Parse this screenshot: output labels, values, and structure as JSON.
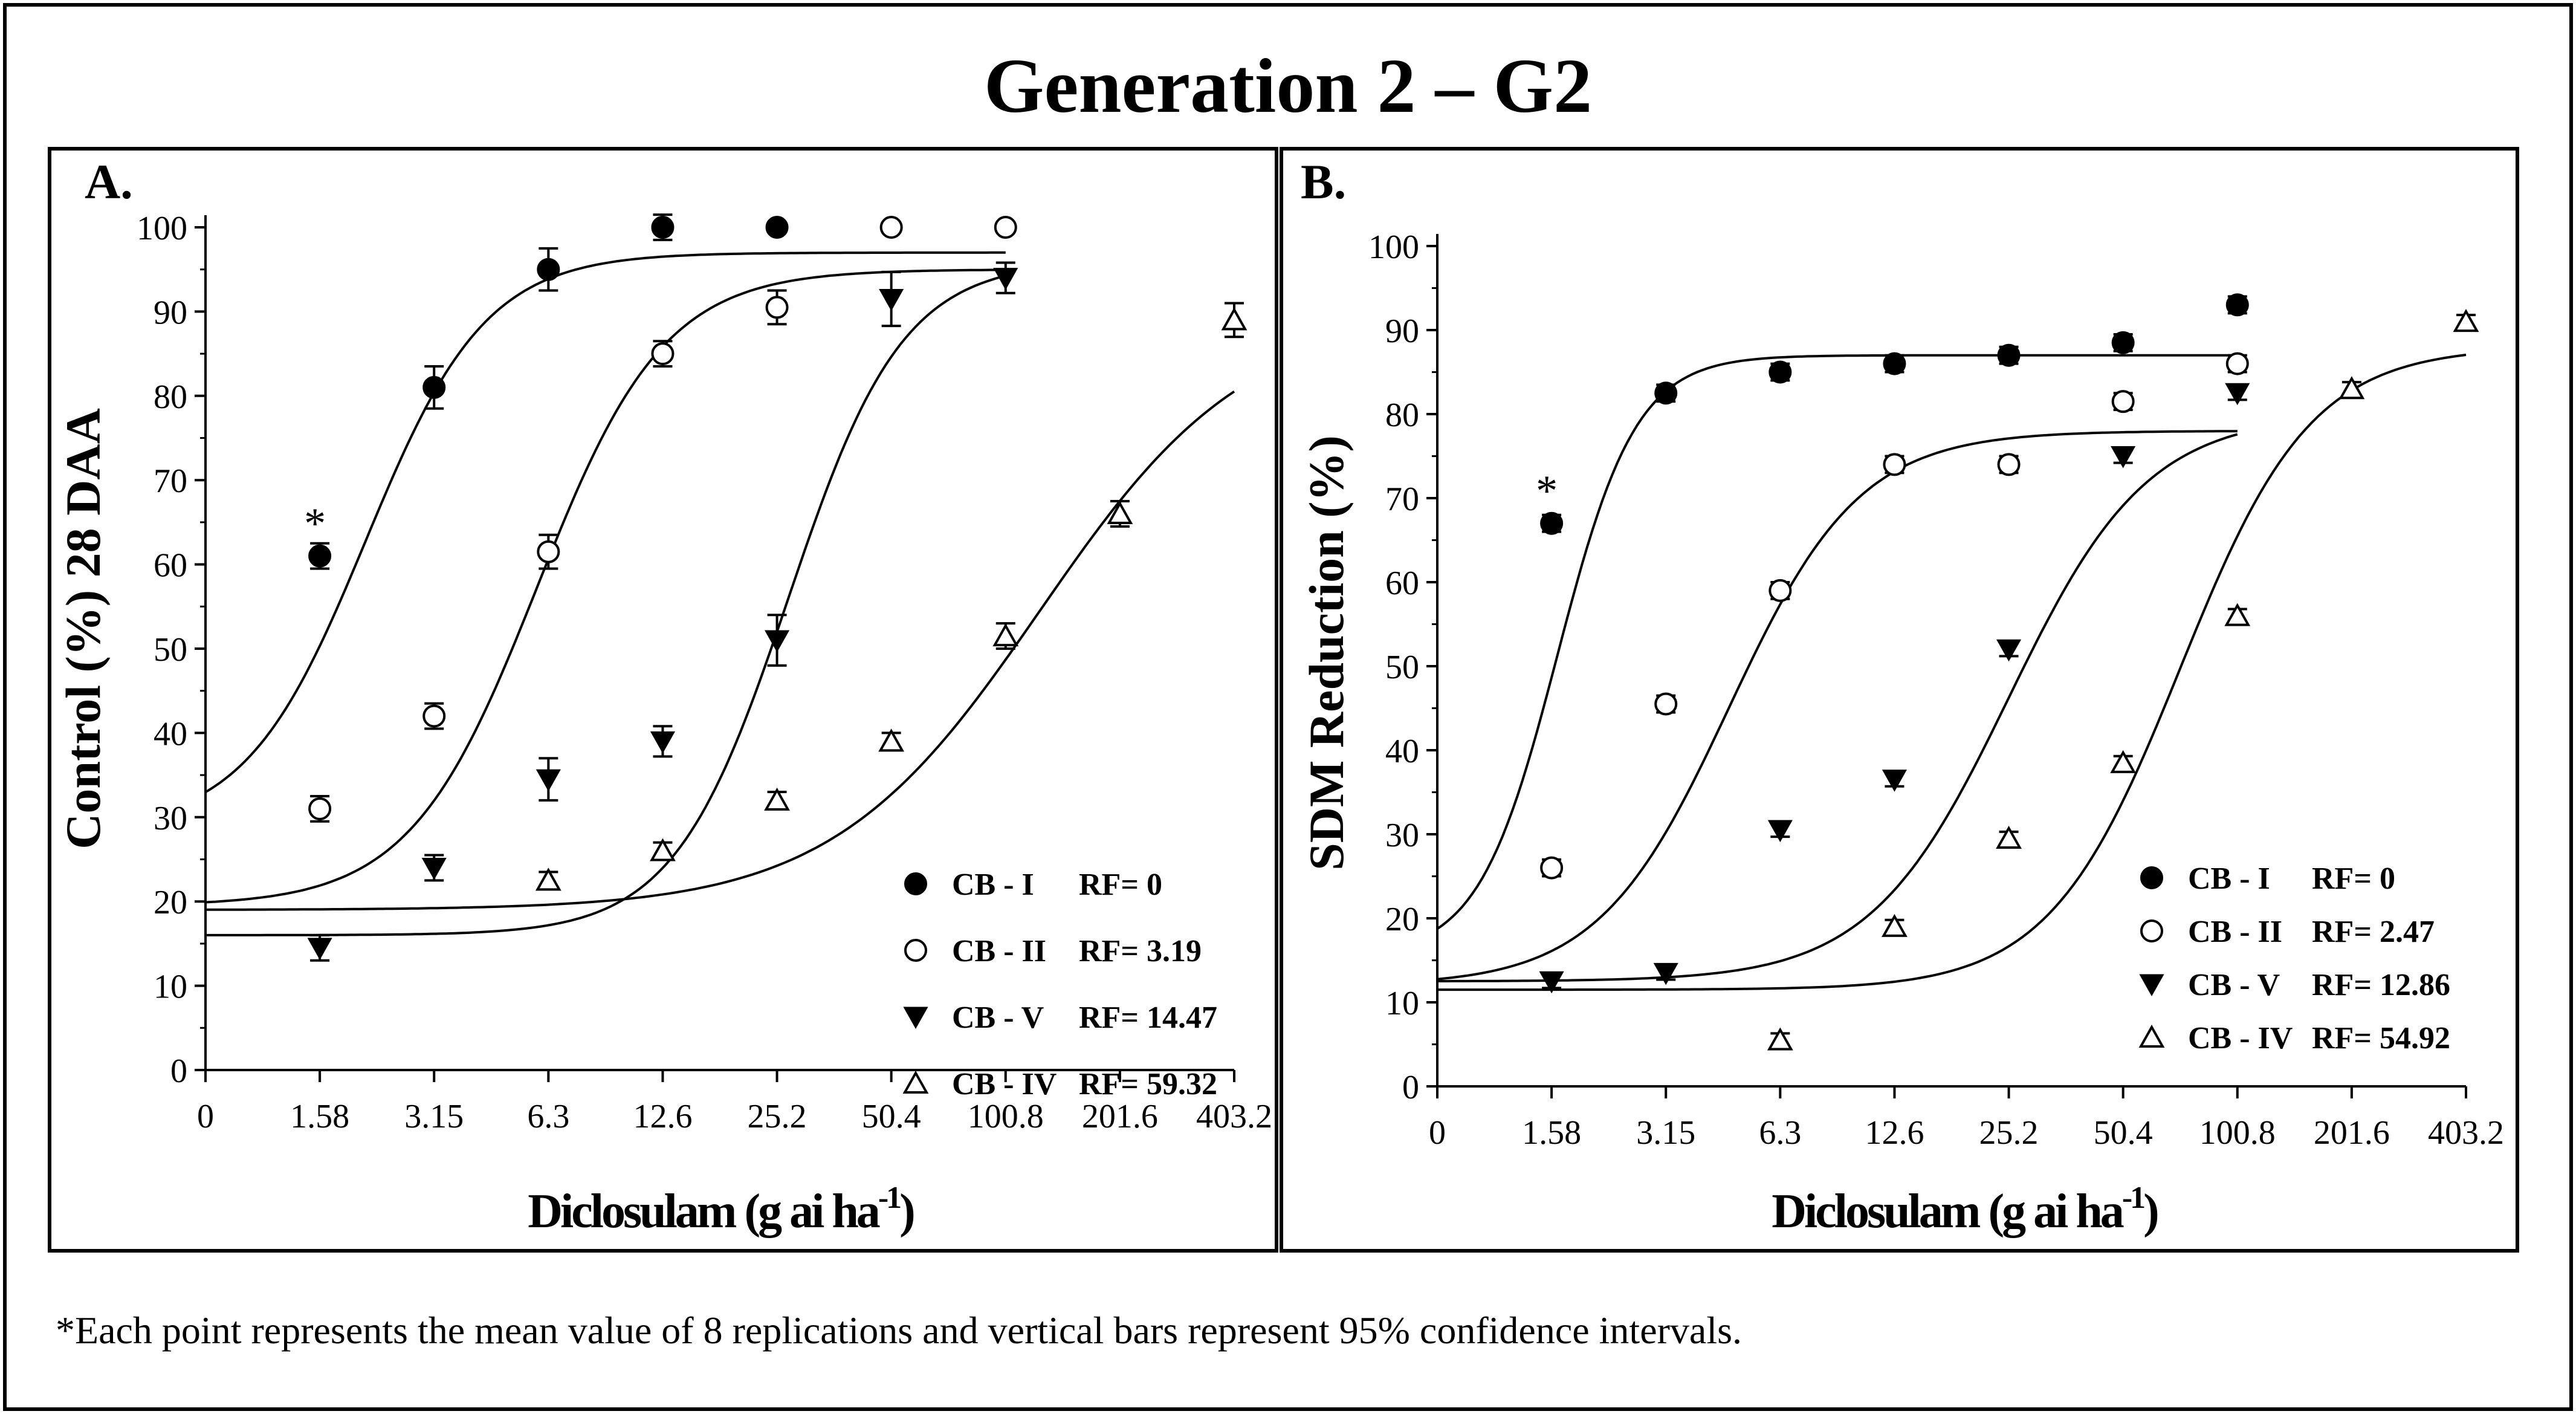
{
  "figure": {
    "title": "Generation 2 – G2",
    "footnote": "*Each point represents the mean value of 8 replications and vertical bars represent 95% confidence intervals."
  },
  "chart_data": [
    {
      "type": "scatter",
      "panel": "A.",
      "ylabel": "Control (%) 28 DAA",
      "xlabel_main": "Diclosulam (g ai ha",
      "xlabel_sup": "-1",
      "xlabel_end": ")",
      "x_ticks": [
        "0",
        "1.58",
        "3.15",
        "6.3",
        "12.6",
        "25.2",
        "50.4",
        "100.8",
        "201.6",
        "403.2"
      ],
      "ylim": [
        0,
        100
      ],
      "y_ticks": [
        0,
        10,
        20,
        30,
        40,
        50,
        60,
        70,
        80,
        90,
        100
      ],
      "annotation": {
        "text": "*",
        "x_index": 1,
        "y": 66
      },
      "series": [
        {
          "name": "CB - I",
          "rf": "RF= 0",
          "marker": "filled-circle",
          "x_index": [
            1,
            2,
            3,
            4,
            5
          ],
          "values": [
            61,
            81,
            95,
            100,
            100
          ],
          "ci": [
            1.5,
            2.5,
            2.5,
            1.5,
            0.5
          ],
          "curve": {
            "lower": 28.5,
            "upper": 97,
            "mid": 1.4,
            "slope": 1.9,
            "x_end": 7
          }
        },
        {
          "name": "CB - II",
          "rf": "RF= 3.19",
          "marker": "open-circle",
          "x_index": [
            1,
            2,
            3,
            4,
            5,
            6,
            7
          ],
          "values": [
            31,
            42,
            61.5,
            85,
            90.5,
            100,
            100
          ],
          "ci": [
            1.5,
            1.5,
            2,
            1.5,
            2,
            0.5,
            0.5
          ],
          "curve": {
            "lower": 19.5,
            "upper": 95,
            "mid": 2.9,
            "slope": 1.8,
            "x_end": 7
          }
        },
        {
          "name": "CB - V",
          "rf": "RF= 14.47",
          "marker": "filled-triangle-down",
          "x_index": [
            1,
            2,
            3,
            4,
            5,
            6,
            7
          ],
          "values": [
            14.5,
            24,
            34.5,
            39,
            51,
            91.5,
            94
          ],
          "ci": [
            1.5,
            1.5,
            2.5,
            1.8,
            3,
            3.2,
            1.8
          ],
          "curve": {
            "lower": 16,
            "upper": 96,
            "mid": 5.1,
            "slope": 2.0,
            "x_end": 7
          }
        },
        {
          "name": "CB - IV",
          "rf": "RF= 59.32",
          "marker": "open-triangle-up",
          "x_index": [
            3,
            4,
            5,
            6,
            7,
            8,
            9
          ],
          "values": [
            22.5,
            26,
            32,
            39,
            51.5,
            66,
            89
          ],
          "ci": [
            1,
            1,
            1,
            1,
            1.5,
            1.5,
            2
          ],
          "curve": {
            "lower": 19,
            "upper": 90,
            "mid": 7.3,
            "slope": 1.1,
            "x_end": 9
          }
        }
      ],
      "legend": {
        "placement": "bottom-right"
      }
    },
    {
      "type": "scatter",
      "panel": "B.",
      "ylabel": "SDM Reduction (%)",
      "xlabel_main": "Diclosulam (g ai ha",
      "xlabel_sup": "-1",
      "xlabel_end": ")",
      "x_ticks": [
        "0",
        "1.58",
        "3.15",
        "6.3",
        "12.6",
        "25.2",
        "50.4",
        "100.8",
        "201.6",
        "403.2"
      ],
      "ylim": [
        0,
        100
      ],
      "y_ticks": [
        0,
        10,
        20,
        30,
        40,
        50,
        60,
        70,
        80,
        90,
        100
      ],
      "annotation": {
        "text": "*",
        "x_index": 1,
        "y": 72
      },
      "series": [
        {
          "name": "CB - I",
          "rf": "RF= 0",
          "marker": "filled-circle",
          "x_index": [
            1,
            2,
            3,
            4,
            5,
            6,
            7
          ],
          "values": [
            67,
            82.5,
            85,
            86,
            87,
            88.5,
            93
          ],
          "ci": [
            1,
            1,
            1,
            1,
            1,
            1,
            1
          ],
          "curve": {
            "lower": 15.5,
            "upper": 87,
            "mid": 1.05,
            "slope": 2.9,
            "x_end": 7
          }
        },
        {
          "name": "CB - II",
          "rf": "RF= 2.47",
          "marker": "open-circle",
          "x_index": [
            1,
            2,
            3,
            4,
            5,
            6,
            7
          ],
          "values": [
            26,
            45.5,
            59,
            74,
            74,
            81.5,
            86
          ],
          "ci": [
            1,
            1,
            1,
            1,
            1,
            1,
            1
          ],
          "curve": {
            "lower": 12,
            "upper": 78,
            "mid": 2.55,
            "slope": 1.75,
            "x_end": 7
          }
        },
        {
          "name": "CB - V",
          "rf": "RF= 12.86",
          "marker": "filled-triangle-down",
          "x_index": [
            1,
            2,
            3,
            4,
            5,
            6,
            7
          ],
          "values": [
            12.5,
            13.5,
            30.5,
            36.5,
            52,
            75,
            82.5
          ],
          "ci": [
            0.8,
            0.8,
            0.8,
            0.8,
            0.8,
            0.8,
            0.8
          ],
          "curve": {
            "lower": 12.5,
            "upper": 80,
            "mid": 5.0,
            "slope": 1.65,
            "x_end": 7
          }
        },
        {
          "name": "CB - IV",
          "rf": "RF= 54.92",
          "marker": "open-triangle-up",
          "x_index": [
            3,
            4,
            5,
            6,
            7,
            8,
            9
          ],
          "values": [
            5.5,
            19,
            29.5,
            38.5,
            56,
            83,
            91
          ],
          "ci": [
            0.8,
            0.8,
            0.8,
            0.8,
            0.8,
            0.8,
            0.8
          ],
          "curve": {
            "lower": 11.5,
            "upper": 88,
            "mid": 6.5,
            "slope": 1.75,
            "x_end": 9
          }
        }
      ],
      "legend": {
        "placement": "bottom-right"
      }
    }
  ]
}
